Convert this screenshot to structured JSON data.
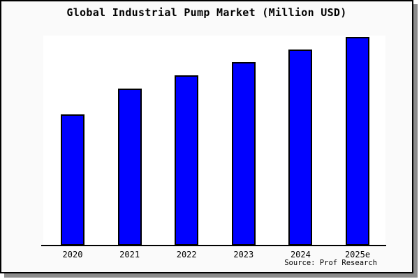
{
  "title": "Global Industrial Pump Market (Million USD)",
  "source_note": "Source: Prof Research",
  "colors": {
    "bar_fill": "#0000ff",
    "bar_border": "#000000",
    "frame_bg": "#fafafa",
    "plot_bg": "#ffffff",
    "frame_border": "#000000",
    "shadow": "#8c8c8c"
  },
  "chart_data": {
    "type": "bar",
    "title": "Global Industrial Pump Market (Million USD)",
    "categories": [
      "2020",
      "2021",
      "2022",
      "2023",
      "2024",
      "2025e"
    ],
    "values": [
      62.7,
      75.0,
      81.3,
      87.7,
      93.7,
      99.7
    ],
    "value_note": "y-axis has no tick labels; values are estimated percent of tallest-bar scale",
    "xlabel": "",
    "ylabel": "",
    "ylim": [
      0,
      100
    ],
    "grid": false,
    "legend": false,
    "annotation": "Source: Prof Research"
  }
}
